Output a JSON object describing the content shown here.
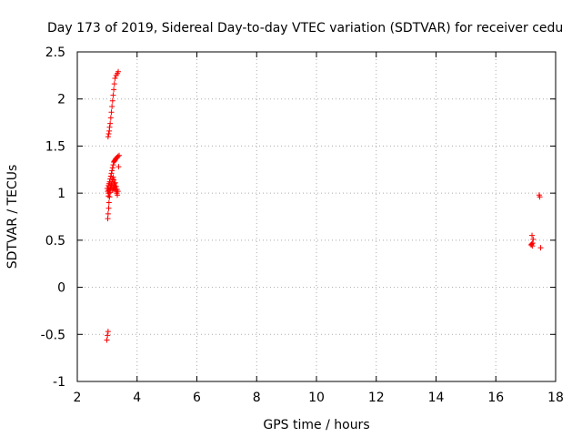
{
  "chart_data": {
    "type": "scatter",
    "title": "Day 173 of 2019, Sidereal Day-to-day VTEC variation (SDTVAR) for receiver cedu",
    "xlabel": "GPS time / hours",
    "ylabel": "SDTVAR / TECUs",
    "xlim": [
      2,
      18
    ],
    "ylim": [
      -1,
      2.5
    ],
    "xticks": [
      2,
      4,
      6,
      8,
      10,
      12,
      14,
      16,
      18
    ],
    "xtick_labels": [
      "2",
      "4",
      "6",
      "8",
      "10",
      "12",
      "14",
      "16",
      "18"
    ],
    "yticks": [
      -1,
      -0.5,
      0,
      0.5,
      1,
      1.5,
      2,
      2.5
    ],
    "ytick_labels": [
      "-1",
      "-0.5",
      "0",
      "0.5",
      "1",
      "1.5",
      "2",
      "2.5"
    ],
    "grid": true,
    "marker": "+",
    "color": "#ff0000",
    "series": [
      {
        "name": "SDTVAR",
        "x": [
          3.03,
          3.05,
          3.07,
          3.08,
          3.1,
          3.12,
          3.14,
          3.16,
          3.18,
          3.2,
          3.22,
          3.24,
          3.26,
          3.3,
          3.34,
          3.37,
          3.02,
          3.04,
          3.06,
          3.08,
          3.1,
          3.12,
          3.14,
          3.16,
          3.18,
          3.2,
          3.22,
          3.24,
          3.26,
          3.28,
          3.3,
          3.33,
          3.36,
          3.4,
          3.02,
          3.03,
          3.05,
          3.06,
          3.08,
          3.1,
          3.12,
          3.14,
          3.16,
          3.18,
          3.2,
          3.22,
          3.24,
          3.26,
          3.28,
          3.3,
          3.32,
          3.34,
          3.38,
          3.04,
          3.06,
          3.08,
          3.1,
          3.12,
          3.15,
          3.18,
          3.21,
          3.24,
          3.27,
          3.3,
          3.33,
          3.36,
          3.0,
          3.02,
          3.04,
          3.05,
          2.99,
          3.01,
          3.03,
          17.18,
          17.2,
          17.22,
          17.23,
          17.25,
          17.21,
          17.5,
          17.47,
          17.45
        ],
        "y": [
          1.6,
          1.63,
          1.66,
          1.7,
          1.74,
          1.8,
          1.86,
          1.92,
          1.98,
          2.04,
          2.1,
          2.16,
          2.22,
          2.25,
          2.27,
          2.29,
          1.05,
          1.08,
          1.1,
          1.12,
          1.15,
          1.18,
          1.21,
          1.24,
          1.27,
          1.3,
          1.33,
          1.34,
          1.35,
          1.36,
          1.37,
          1.38,
          1.39,
          1.4,
          0.73,
          0.78,
          0.84,
          0.9,
          0.96,
          1.01,
          1.05,
          1.09,
          1.12,
          1.15,
          1.17,
          1.14,
          1.1,
          1.07,
          1.04,
          1.02,
          1.0,
          0.98,
          1.28,
          0.97,
          1.0,
          1.03,
          1.06,
          1.09,
          1.06,
          1.03,
          1.05,
          1.08,
          1.11,
          1.07,
          1.04,
          1.02,
          1.05,
          1.02,
          1.0,
          1.03,
          -0.56,
          -0.51,
          -0.47,
          0.45,
          0.46,
          0.44,
          0.47,
          0.51,
          0.55,
          0.42,
          0.96,
          0.98
        ]
      }
    ]
  }
}
